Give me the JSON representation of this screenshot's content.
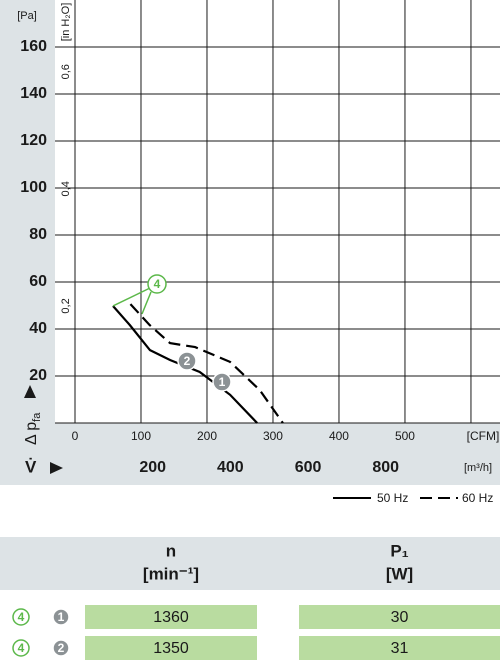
{
  "chart_data": {
    "type": "line",
    "xlabel": "V̇",
    "ylabel": "Δ p",
    "ylabel_sub": "fa",
    "yunit": "[Pa]",
    "y2unit": "[in H₂O]",
    "x2unit": "[m³/h]",
    "xlim": [
      0,
      644
    ],
    "ylim": [
      0,
      180
    ],
    "xticks": [
      0,
      100,
      200,
      300,
      400,
      500,
      {
        "value": 600,
        "label": "[CFM]"
      }
    ],
    "yticks": [
      20,
      40,
      60,
      80,
      100,
      120,
      140,
      160
    ],
    "x2lim": [
      0,
      1094.2
    ],
    "x2ticks": [
      200,
      400,
      600,
      800
    ],
    "y2lim": [
      0,
      0.7226
    ],
    "y2ticks": [
      {
        "value": 0.2,
        "label": "0,2"
      },
      {
        "value": 0.4,
        "label": "0,4"
      },
      {
        "value": 0.6,
        "label": "0,6"
      }
    ],
    "grid": true,
    "series": [
      {
        "name": "50 Hz",
        "color": "#000000",
        "dash": false,
        "x": [
          57.6,
          83,
          113.6,
          144,
          189,
          235,
          276
        ],
        "values": [
          49.8,
          41.7,
          31,
          26.8,
          21.7,
          12,
          0
        ]
      },
      {
        "name": "60 Hz",
        "color": "#000000",
        "dash": true,
        "x": [
          84,
          113,
          144,
          182,
          235,
          280,
          315
        ],
        "values": [
          50.6,
          41.7,
          34,
          32.3,
          26,
          14,
          0
        ]
      }
    ],
    "annotations": [
      "4",
      "2",
      "1"
    ]
  },
  "table": {
    "header": [
      {
        "text": "n",
        "unit": "[min⁻¹]"
      },
      {
        "text": "P₁",
        "unit": "[W]"
      }
    ],
    "rows": [
      {
        "marks": [
          "4",
          "1"
        ],
        "cells": [
          "1360",
          "30"
        ]
      },
      {
        "marks": [
          "4",
          "2"
        ],
        "cells": [
          "1350",
          "31"
        ]
      }
    ]
  }
}
